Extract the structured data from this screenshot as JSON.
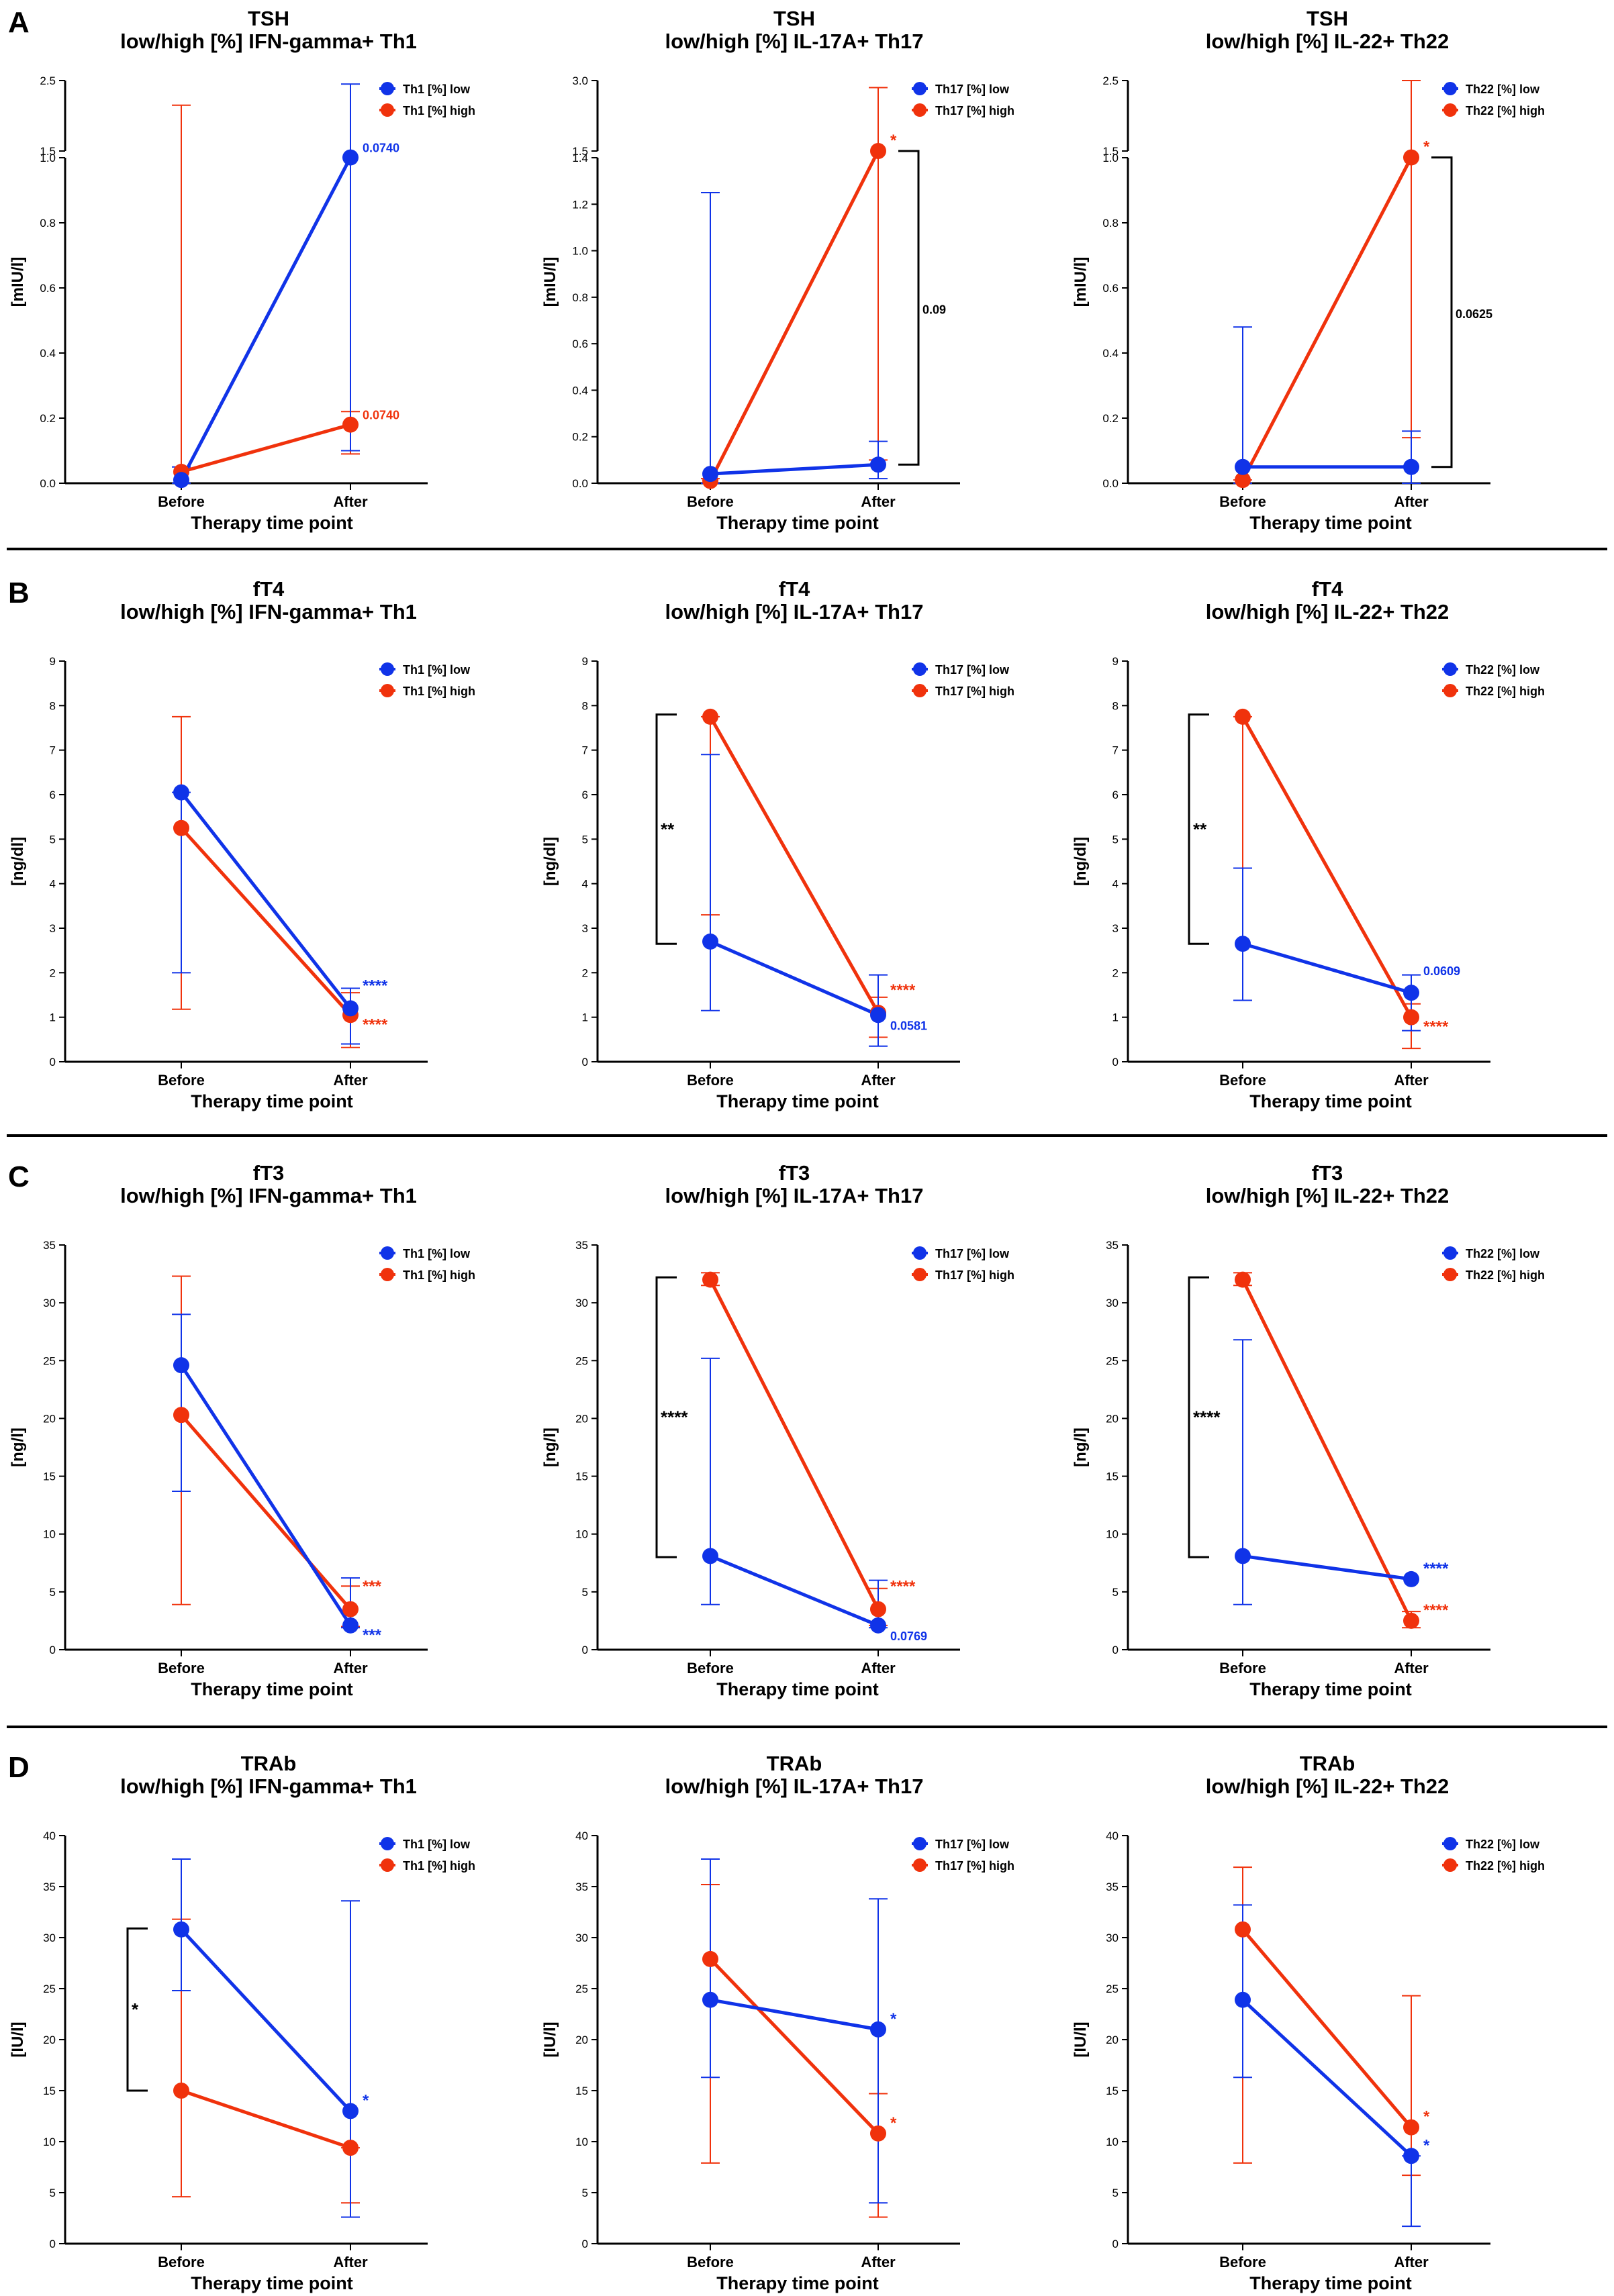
{
  "figure": {
    "colors": {
      "low": "#1033e8",
      "high": "#f0320c",
      "axis": "#000000"
    },
    "rows": [
      {
        "label": "A",
        "hormone": "TSH",
        "ylabel": "[mIU/l]",
        "xlabel": "Therapy time point",
        "panels": [
          {
            "subtitle": "low/high [%] IFN-gamma+ Th1",
            "legend": [
              "Th1 [%] low",
              "Th1 [%] high"
            ]
          },
          {
            "subtitle": "low/high [%] IL-17A+ Th17",
            "legend": [
              "Th17 [%] low",
              "Th17 [%] high"
            ]
          },
          {
            "subtitle": "low/high [%] IL-22+ Th22",
            "legend": [
              "Th22 [%] low",
              "Th22 [%] high"
            ]
          }
        ]
      },
      {
        "label": "B",
        "hormone": "fT4",
        "ylabel": "[ng/dl]",
        "xlabel": "Therapy time point",
        "panels": [
          {
            "subtitle": "low/high [%] IFN-gamma+ Th1",
            "legend": [
              "Th1 [%] low",
              "Th1 [%] high"
            ]
          },
          {
            "subtitle": "low/high [%] IL-17A+ Th17",
            "legend": [
              "Th17 [%] low",
              "Th17 [%] high"
            ]
          },
          {
            "subtitle": "low/high [%] IL-22+ Th22",
            "legend": [
              "Th22 [%] low",
              "Th22 [%] high"
            ]
          }
        ]
      },
      {
        "label": "C",
        "hormone": "fT3",
        "ylabel": "[ng/l]",
        "xlabel": "Therapy time point",
        "panels": [
          {
            "subtitle": "low/high [%] IFN-gamma+ Th1",
            "legend": [
              "Th1 [%] low",
              "Th1 [%] high"
            ]
          },
          {
            "subtitle": "low/high [%] IL-17A+ Th17",
            "legend": [
              "Th17 [%] low",
              "Th17 [%] high"
            ]
          },
          {
            "subtitle": "low/high [%] IL-22+ Th22",
            "legend": [
              "Th22 [%] low",
              "Th22 [%] high"
            ]
          }
        ]
      },
      {
        "label": "D",
        "hormone": "TRAb",
        "ylabel": "[IU/l]",
        "xlabel": "Therapy time point",
        "panels": [
          {
            "subtitle": "low/high [%] IFN-gamma+ Th1",
            "legend": [
              "Th1 [%] low",
              "Th1 [%] high"
            ]
          },
          {
            "subtitle": "low/high [%] IL-17A+ Th17",
            "legend": [
              "Th17 [%] low",
              "Th17 [%] high"
            ]
          },
          {
            "subtitle": "low/high [%] IL-22+ Th22",
            "legend": [
              "Th22 [%] low",
              "Th22 [%] high"
            ]
          }
        ]
      }
    ]
  },
  "chart_data": [
    {
      "type": "line",
      "panel": "A1",
      "title": "TSH",
      "subtitle": "low/high [%] IFN-gamma+ Th1",
      "xlabel": "Therapy time point",
      "ylabel": "[mIU/l]",
      "categories": [
        "Before",
        "After"
      ],
      "axis_break": {
        "lower_max": 1.0,
        "upper_ticks": [
          1.5,
          2.5
        ],
        "upper_max": 2.5
      },
      "yticks": [
        0.0,
        0.2,
        0.4,
        0.6,
        0.8,
        1.0,
        1.5,
        2.5
      ],
      "series": [
        {
          "name": "Th1 [%] low",
          "values": [
            0.01,
            1.02
          ],
          "err_lo": [
            0.0,
            0.1
          ],
          "err_hi": [
            0.05,
            2.45
          ]
        },
        {
          "name": "Th1 [%] high",
          "values": [
            0.035,
            0.18
          ],
          "err_lo": [
            0.0,
            0.09
          ],
          "err_hi": [
            2.15,
            0.22
          ]
        }
      ],
      "annotations": [
        {
          "text": "0.0740",
          "series": 0,
          "point": 1
        },
        {
          "text": "0.0740",
          "series": 1,
          "point": 1
        }
      ]
    },
    {
      "type": "line",
      "panel": "A2",
      "title": "TSH",
      "subtitle": "low/high [%] IL-17A+ Th17",
      "xlabel": "Therapy time point",
      "ylabel": "[mIU/l]",
      "categories": [
        "Before",
        "After"
      ],
      "axis_break": {
        "lower_max": 1.4,
        "upper_ticks": [
          1.5,
          3.0
        ],
        "upper_max": 3.0
      },
      "yticks": [
        0.0,
        0.2,
        0.4,
        0.6,
        0.8,
        1.0,
        1.2,
        1.4,
        1.5,
        3.0
      ],
      "series": [
        {
          "name": "Th17 [%] low",
          "values": [
            0.04,
            0.08
          ],
          "err_lo": [
            0.0,
            0.02
          ],
          "err_hi": [
            1.25,
            0.18
          ]
        },
        {
          "name": "Th17 [%] high",
          "values": [
            0.01,
            1.5
          ],
          "err_lo": [
            0.0,
            0.1
          ],
          "err_hi": [
            0.02,
            2.85
          ]
        }
      ],
      "annotations": [
        {
          "text": "*",
          "series": 1,
          "point": 1
        }
      ],
      "brackets": [
        {
          "text": "0.09",
          "point": 1,
          "from": 0.08,
          "to": 1.5
        }
      ]
    },
    {
      "type": "line",
      "panel": "A3",
      "title": "TSH",
      "subtitle": "low/high [%] IL-22+ Th22",
      "xlabel": "Therapy time point",
      "ylabel": "[mIU/l]",
      "categories": [
        "Before",
        "After"
      ],
      "axis_break": {
        "lower_max": 1.0,
        "upper_ticks": [
          1.5,
          2.5
        ],
        "upper_max": 2.5
      },
      "yticks": [
        0.0,
        0.2,
        0.4,
        0.6,
        0.8,
        1.0,
        1.5,
        2.5
      ],
      "series": [
        {
          "name": "Th22 [%] low",
          "values": [
            0.05,
            0.05
          ],
          "err_lo": [
            0.0,
            0.0
          ],
          "err_hi": [
            0.48,
            0.16
          ]
        },
        {
          "name": "Th22 [%] high",
          "values": [
            0.01,
            1.02
          ],
          "err_lo": [
            0.0,
            0.14
          ],
          "err_hi": [
            0.01,
            2.5
          ]
        }
      ],
      "annotations": [
        {
          "text": "*",
          "series": 1,
          "point": 1
        }
      ],
      "brackets": [
        {
          "text": "0.0625",
          "point": 1,
          "from": 0.05,
          "to": 1.02
        }
      ]
    },
    {
      "type": "line",
      "panel": "B1",
      "title": "fT4",
      "subtitle": "low/high [%] IFN-gamma+ Th1",
      "xlabel": "Therapy time point",
      "ylabel": "[ng/dl]",
      "categories": [
        "Before",
        "After"
      ],
      "ylim": [
        0,
        9
      ],
      "yticks": [
        0,
        1,
        2,
        3,
        4,
        5,
        6,
        7,
        8,
        9
      ],
      "series": [
        {
          "name": "Th1 [%] low",
          "values": [
            6.05,
            1.2
          ],
          "err_lo": [
            2.0,
            0.4
          ],
          "err_hi": [
            6.05,
            1.65
          ]
        },
        {
          "name": "Th1 [%] high",
          "values": [
            5.25,
            1.05
          ],
          "err_lo": [
            1.18,
            0.32
          ],
          "err_hi": [
            7.75,
            1.55
          ]
        }
      ],
      "annotations": [
        {
          "text": "****",
          "series": 0,
          "point": 1
        },
        {
          "text": "****",
          "series": 1,
          "point": 1
        }
      ]
    },
    {
      "type": "line",
      "panel": "B2",
      "title": "fT4",
      "subtitle": "low/high [%] IL-17A+ Th17",
      "xlabel": "Therapy time point",
      "ylabel": "[ng/dl]",
      "categories": [
        "Before",
        "After"
      ],
      "ylim": [
        0,
        9
      ],
      "yticks": [
        0,
        1,
        2,
        3,
        4,
        5,
        6,
        7,
        8,
        9
      ],
      "series": [
        {
          "name": "Th17 [%] low",
          "values": [
            2.7,
            1.05
          ],
          "err_lo": [
            1.15,
            0.35
          ],
          "err_hi": [
            6.9,
            1.95
          ]
        },
        {
          "name": "Th17 [%] high",
          "values": [
            7.75,
            1.1
          ],
          "err_lo": [
            3.3,
            0.55
          ],
          "err_hi": [
            7.75,
            1.45
          ]
        }
      ],
      "annotations": [
        {
          "text": "****",
          "series": 1,
          "point": 1
        },
        {
          "text": "0.0581",
          "series": 0,
          "point": 1
        }
      ],
      "brackets": [
        {
          "text": "**",
          "point": 0,
          "from": 2.65,
          "to": 7.8
        }
      ]
    },
    {
      "type": "line",
      "panel": "B3",
      "title": "fT4",
      "subtitle": "low/high [%] IL-22+ Th22",
      "xlabel": "Therapy time point",
      "ylabel": "[ng/dl]",
      "categories": [
        "Before",
        "After"
      ],
      "ylim": [
        0,
        9
      ],
      "yticks": [
        0,
        1,
        2,
        3,
        4,
        5,
        6,
        7,
        8,
        9
      ],
      "series": [
        {
          "name": "Th22 [%] low",
          "values": [
            2.65,
            1.55
          ],
          "err_lo": [
            1.38,
            0.7
          ],
          "err_hi": [
            4.35,
            1.95
          ]
        },
        {
          "name": "Th22 [%] high",
          "values": [
            7.75,
            1.0
          ],
          "err_lo": [
            4.35,
            0.3
          ],
          "err_hi": [
            7.75,
            1.3
          ]
        }
      ],
      "annotations": [
        {
          "text": "0.0609",
          "series": 0,
          "point": 1
        },
        {
          "text": "****",
          "series": 1,
          "point": 1
        }
      ],
      "brackets": [
        {
          "text": "**",
          "point": 0,
          "from": 2.65,
          "to": 7.8
        }
      ]
    },
    {
      "type": "line",
      "panel": "C1",
      "title": "fT3",
      "subtitle": "low/high [%] IFN-gamma+ Th1",
      "xlabel": "Therapy time point",
      "ylabel": "[ng/l]",
      "categories": [
        "Before",
        "After"
      ],
      "ylim": [
        0,
        35
      ],
      "yticks": [
        0,
        5,
        10,
        15,
        20,
        25,
        30,
        35
      ],
      "series": [
        {
          "name": "Th1 [%] low",
          "values": [
            24.6,
            2.1
          ],
          "err_lo": [
            13.7,
            1.9
          ],
          "err_hi": [
            29.0,
            6.2
          ]
        },
        {
          "name": "Th1 [%] high",
          "values": [
            20.3,
            3.5
          ],
          "err_lo": [
            3.9,
            2.0
          ],
          "err_hi": [
            32.3,
            5.5
          ]
        }
      ],
      "annotations": [
        {
          "text": "***",
          "series": 1,
          "point": 1
        },
        {
          "text": "***",
          "series": 0,
          "point": 1
        }
      ]
    },
    {
      "type": "line",
      "panel": "C2",
      "title": "fT3",
      "subtitle": "low/high [%] IL-17A+ Th17",
      "xlabel": "Therapy time point",
      "ylabel": "[ng/l]",
      "categories": [
        "Before",
        "After"
      ],
      "ylim": [
        0,
        35
      ],
      "yticks": [
        0,
        5,
        10,
        15,
        20,
        25,
        30,
        35
      ],
      "series": [
        {
          "name": "Th17 [%] low",
          "values": [
            8.1,
            2.1
          ],
          "err_lo": [
            3.9,
            1.9
          ],
          "err_hi": [
            25.2,
            6.0
          ]
        },
        {
          "name": "Th17 [%] high",
          "values": [
            32.0,
            3.5
          ],
          "err_lo": [
            31.5,
            2.1
          ],
          "err_hi": [
            32.6,
            5.3
          ]
        }
      ],
      "annotations": [
        {
          "text": "****",
          "series": 1,
          "point": 1
        },
        {
          "text": "0.0769",
          "series": 0,
          "point": 1
        }
      ],
      "brackets": [
        {
          "text": "****",
          "point": 0,
          "from": 8.0,
          "to": 32.2
        }
      ]
    },
    {
      "type": "line",
      "panel": "C3",
      "title": "fT3",
      "subtitle": "low/high [%] IL-22+ Th22",
      "xlabel": "Therapy time point",
      "ylabel": "[ng/l]",
      "categories": [
        "Before",
        "After"
      ],
      "ylim": [
        0,
        35
      ],
      "yticks": [
        0,
        5,
        10,
        15,
        20,
        25,
        30,
        35
      ],
      "series": [
        {
          "name": "Th22 [%] low",
          "values": [
            8.1,
            6.1
          ],
          "err_lo": [
            3.9,
            6.1
          ],
          "err_hi": [
            26.8,
            6.1
          ]
        },
        {
          "name": "Th22 [%] high",
          "values": [
            32.0,
            2.5
          ],
          "err_lo": [
            31.5,
            1.9
          ],
          "err_hi": [
            32.6,
            3.3
          ]
        }
      ],
      "annotations": [
        {
          "text": "****",
          "series": 0,
          "point": 1
        },
        {
          "text": "****",
          "series": 1,
          "point": 1
        }
      ],
      "brackets": [
        {
          "text": "****",
          "point": 0,
          "from": 8.0,
          "to": 32.2
        }
      ]
    },
    {
      "type": "line",
      "panel": "D1",
      "title": "TRAb",
      "subtitle": "low/high [%] IFN-gamma+ Th1",
      "xlabel": "Therapy time point",
      "ylabel": "[IU/l]",
      "categories": [
        "Before",
        "After"
      ],
      "ylim": [
        0,
        40
      ],
      "yticks": [
        0,
        5,
        10,
        15,
        20,
        25,
        30,
        35,
        40
      ],
      "series": [
        {
          "name": "Th1 [%] low",
          "values": [
            30.8,
            13.0
          ],
          "err_lo": [
            24.8,
            2.6
          ],
          "err_hi": [
            37.7,
            33.6
          ]
        },
        {
          "name": "Th1 [%] high",
          "values": [
            15.0,
            9.4
          ],
          "err_lo": [
            4.6,
            4.0
          ],
          "err_hi": [
            31.8,
            9.4
          ]
        }
      ],
      "annotations": [
        {
          "text": "*",
          "series": 0,
          "point": 1
        }
      ],
      "brackets": [
        {
          "text": "*",
          "point": 0,
          "from": 15.0,
          "to": 30.9
        }
      ]
    },
    {
      "type": "line",
      "panel": "D2",
      "title": "TRAb",
      "subtitle": "low/high [%] IL-17A+ Th17",
      "xlabel": "Therapy time point",
      "ylabel": "[IU/l]",
      "categories": [
        "Before",
        "After"
      ],
      "ylim": [
        0,
        40
      ],
      "yticks": [
        0,
        5,
        10,
        15,
        20,
        25,
        30,
        35,
        40
      ],
      "series": [
        {
          "name": "Th17 [%] low",
          "values": [
            23.9,
            21.0
          ],
          "err_lo": [
            16.3,
            4.0
          ],
          "err_hi": [
            37.7,
            33.8
          ]
        },
        {
          "name": "Th17 [%] high",
          "values": [
            27.9,
            10.8
          ],
          "err_lo": [
            7.9,
            2.6
          ],
          "err_hi": [
            35.2,
            14.7
          ]
        }
      ],
      "annotations": [
        {
          "text": "*",
          "series": 0,
          "point": 1
        },
        {
          "text": "*",
          "series": 1,
          "point": 1
        }
      ]
    },
    {
      "type": "line",
      "panel": "D3",
      "title": "TRAb",
      "subtitle": "low/high [%] IL-22+ Th22",
      "xlabel": "Therapy time point",
      "ylabel": "[IU/l]",
      "categories": [
        "Before",
        "After"
      ],
      "ylim": [
        0,
        40
      ],
      "yticks": [
        0,
        5,
        10,
        15,
        20,
        25,
        30,
        35,
        40
      ],
      "series": [
        {
          "name": "Th22 [%] low",
          "values": [
            23.9,
            8.6
          ],
          "err_lo": [
            16.3,
            1.7
          ],
          "err_hi": [
            33.2,
            8.6
          ]
        },
        {
          "name": "Th22 [%] high",
          "values": [
            30.8,
            11.4
          ],
          "err_lo": [
            7.9,
            6.7
          ],
          "err_hi": [
            36.9,
            24.3
          ]
        }
      ],
      "annotations": [
        {
          "text": "*",
          "series": 1,
          "point": 1
        },
        {
          "text": "*",
          "series": 0,
          "point": 1
        }
      ]
    }
  ]
}
